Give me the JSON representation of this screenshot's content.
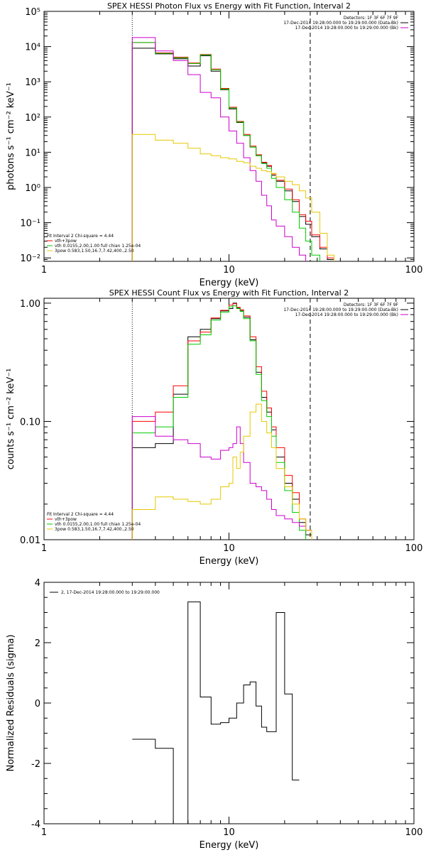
{
  "colors": {
    "data": "#000000",
    "total": "#ff0000",
    "thermal": "#00cc00",
    "powerlaw": "#cc00cc",
    "bkg": "#e6c800"
  },
  "chart_data": [
    {
      "type": "line",
      "title": "SPEX HESSI Photon Flux vs Energy with Fit Function, Interval 2",
      "xlabel": "Energy (keV)",
      "ylabel": "photons s⁻¹ cm⁻² keV⁻¹",
      "xlog": true,
      "ylog": true,
      "xlim": [
        1,
        100
      ],
      "ylim": [
        0.008,
        100000
      ],
      "xticks": [
        {
          "v": 1,
          "label": "1"
        },
        {
          "v": 10,
          "label": "10"
        },
        {
          "v": 100,
          "label": "100"
        }
      ],
      "yticks": [
        {
          "v": 0.01,
          "label": "10⁻²"
        },
        {
          "v": 0.1,
          "label": "10⁻¹"
        },
        {
          "v": 1,
          "label": "10⁰"
        },
        {
          "v": 10,
          "label": "10¹"
        },
        {
          "v": 100,
          "label": "10²"
        },
        {
          "v": 1000,
          "label": "10³"
        },
        {
          "v": 10000,
          "label": "10⁴"
        },
        {
          "v": 100000,
          "label": "10⁵"
        }
      ],
      "vlines": [
        {
          "x": 3,
          "style": "dotted"
        },
        {
          "x": 27.5,
          "style": "dashed"
        }
      ],
      "legend_tr": [
        "Detectors: 1F 3F 6F 7F 9F",
        "17-Dec-2014 19:28:00.000 to 19:29:00.000 (Data-Bk)",
        "17-Dec-2014 19:28:00.000 to 19:29:00.000 (Bk)"
      ],
      "legend_tr_colors": [
        "#000000",
        "#000000",
        "#cc00cc"
      ],
      "legend_bl": [
        "Fit Interval 2   Chi-square = 4.44",
        "vth+3pow",
        "vth 0.0155,2.00,1.00  full chian 1.25e-04",
        "3pow 0.583,1.50,16.7,7.42,400.,2.50"
      ],
      "legend_bl_colors": [
        "#000000",
        "#ff0000",
        "#00cc00",
        "#e6c800"
      ],
      "edges": [
        3,
        3.5,
        4,
        4.5,
        5,
        5.5,
        6,
        6.5,
        7,
        8,
        9,
        10,
        11,
        12,
        13,
        14,
        15,
        16,
        17,
        18,
        20,
        22,
        24,
        26,
        28,
        31,
        34,
        37
      ],
      "series": [
        {
          "color": "#000000",
          "values": [
            9000,
            9000,
            6200,
            6200,
            4500,
            4500,
            2800,
            2800,
            5500,
            2000,
            600,
            170,
            70,
            30,
            14,
            8,
            5.0,
            4.0,
            2.2,
            1.5,
            0.8,
            0.4,
            0.15,
            0.09,
            0.04,
            0.018,
            0.009
          ]
        },
        {
          "color": "#ff0000",
          "values": [
            13000,
            13000,
            6600,
            6600,
            5000,
            5000,
            3400,
            3400,
            6000,
            2300,
            650,
            190,
            75,
            32,
            15,
            8.5,
            5.2,
            4.2,
            2.4,
            1.6,
            0.9,
            0.45,
            0.17,
            0.11,
            0.045,
            0.02,
            0.01
          ]
        },
        {
          "color": "#00cc00",
          "values": [
            13000,
            13000,
            6400,
            6400,
            4800,
            4800,
            3300,
            3300,
            5800,
            2200,
            620,
            180,
            72,
            30,
            14,
            8,
            4.8,
            3.5,
            1.8,
            1.0,
            0.45,
            0.2,
            0.07,
            0.03,
            0.012,
            null,
            null
          ]
        },
        {
          "color": "#cc00cc",
          "values": [
            18000,
            18000,
            7500,
            7500,
            4000,
            4000,
            1600,
            1600,
            500,
            350,
            100,
            40,
            18,
            7,
            3,
            1.5,
            0.6,
            0.3,
            0.12,
            0.08,
            0.04,
            0.02,
            0.012,
            null,
            null,
            null,
            null
          ]
        },
        {
          "color": "#e6c800",
          "values": [
            32,
            32,
            22,
            22,
            18,
            18,
            13,
            13,
            9,
            8,
            7,
            6.5,
            5.5,
            5.0,
            4.0,
            3.5,
            3.0,
            2.8,
            2.5,
            2.0,
            1.5,
            1.2,
            0.8,
            0.5,
            0.2,
            0.05,
            0.012
          ]
        }
      ]
    },
    {
      "type": "line",
      "title": "SPEX HESSI Count Flux vs Energy with Fit Function, Interval 2",
      "xlabel": "Energy (keV)",
      "ylabel": "counts s⁻¹ cm⁻² keV⁻¹",
      "xlog": true,
      "ylog": true,
      "xlim": [
        1,
        100
      ],
      "ylim": [
        0.01,
        1.1
      ],
      "xticks": [
        {
          "v": 1,
          "label": "1"
        },
        {
          "v": 10,
          "label": "10"
        },
        {
          "v": 100,
          "label": "100"
        }
      ],
      "yticks": [
        {
          "v": 0.01,
          "label": "0.01"
        },
        {
          "v": 0.1,
          "label": "0.10"
        },
        {
          "v": 1,
          "label": "1.00"
        }
      ],
      "vlines": [
        {
          "x": 3,
          "style": "dotted"
        },
        {
          "x": 27.5,
          "style": "dashed"
        }
      ],
      "legend_tr": [
        "Detectors: 1F 3F 6F 7F 9F",
        "17-Dec-2014 19:28:00.000 to 19:29:00.000 (Data-Bk)",
        "17-Dec-2014 19:28:00.000 to 19:29:00.000 (Bk)"
      ],
      "legend_tr_colors": [
        "#000000",
        "#000000",
        "#cc00cc"
      ],
      "legend_bl": [
        "Fit Interval 2   Chi-square = 4.44",
        "vth+3pow",
        "vth 0.0155,2.00,1.00  full chian 1.25e-04",
        "3pow 0.583,1.50,16.7,7.42,400.,2.50"
      ],
      "legend_bl_colors": [
        "#000000",
        "#ff0000",
        "#00cc00",
        "#e6c800"
      ],
      "edges": [
        3,
        4,
        5,
        6,
        7,
        8,
        9,
        10,
        10.5,
        11,
        11.5,
        12,
        13,
        14,
        15,
        16,
        17,
        18,
        20,
        22,
        24,
        26,
        28
      ],
      "series": [
        {
          "color": "#000000",
          "values": [
            0.06,
            0.065,
            0.17,
            0.52,
            0.6,
            0.74,
            0.86,
            0.9,
            1.0,
            0.91,
            0.86,
            0.76,
            0.49,
            0.26,
            0.16,
            0.12,
            0.085,
            0.05,
            0.03,
            0.022,
            0.014,
            0.011
          ]
        },
        {
          "color": "#ff0000",
          "values": [
            0.1,
            0.12,
            0.2,
            0.48,
            0.57,
            0.75,
            0.87,
            0.96,
            0.99,
            0.92,
            0.88,
            0.78,
            0.52,
            0.29,
            0.18,
            0.13,
            0.09,
            0.06,
            0.035,
            0.025,
            0.015,
            0.012
          ]
        },
        {
          "color": "#00cc00",
          "values": [
            0.08,
            0.09,
            0.16,
            0.45,
            0.54,
            0.72,
            0.84,
            0.93,
            0.95,
            0.9,
            0.85,
            0.74,
            0.48,
            0.25,
            0.15,
            0.11,
            0.075,
            0.045,
            0.026,
            0.017,
            0.012,
            null
          ]
        },
        {
          "color": "#cc00cc",
          "values": [
            0.11,
            0.075,
            0.07,
            0.065,
            0.05,
            0.048,
            0.057,
            0.06,
            0.065,
            0.09,
            0.065,
            0.045,
            0.03,
            0.028,
            0.026,
            0.022,
            0.018,
            0.016,
            0.015,
            0.014,
            0.013,
            0.012
          ]
        },
        {
          "color": "#e6c800",
          "values": [
            0.018,
            0.023,
            0.022,
            0.021,
            0.02,
            0.022,
            0.028,
            0.03,
            0.05,
            0.04,
            0.055,
            0.075,
            0.12,
            0.14,
            0.1,
            0.08,
            0.06,
            0.04,
            0.028,
            0.02,
            0.015,
            0.012
          ]
        }
      ]
    },
    {
      "type": "line",
      "title": "",
      "xlabel": "Energy (keV)",
      "ylabel": "Normalized Residuals (sigma)",
      "xlog": true,
      "ylog": false,
      "xlim": [
        1,
        100
      ],
      "ylim": [
        -4,
        4
      ],
      "xticks": [
        {
          "v": 1,
          "label": "1"
        },
        {
          "v": 10,
          "label": "10"
        },
        {
          "v": 100,
          "label": "100"
        }
      ],
      "yticks": [
        {
          "v": -4,
          "label": "-4"
        },
        {
          "v": -2,
          "label": "-2"
        },
        {
          "v": 0,
          "label": "0"
        },
        {
          "v": 2,
          "label": "2"
        },
        {
          "v": 4,
          "label": "4"
        }
      ],
      "vlines": [],
      "legend_tl": "2, 17-Dec-2014 19:28:00.000 to 19:29:00.000",
      "edges": [
        3,
        4,
        5,
        6,
        7,
        8,
        9,
        10,
        11,
        12,
        13,
        14,
        15,
        16,
        18,
        20,
        22,
        24,
        26,
        28
      ],
      "series": [
        {
          "color": "#000000",
          "values": [
            -1.2,
            -1.5,
            -4.0,
            3.35,
            0.2,
            -0.7,
            -0.65,
            -0.5,
            0.0,
            0.6,
            0.7,
            -0.1,
            -0.8,
            -0.95,
            3.0,
            0.3,
            -2.55,
            null,
            null
          ]
        }
      ]
    }
  ]
}
